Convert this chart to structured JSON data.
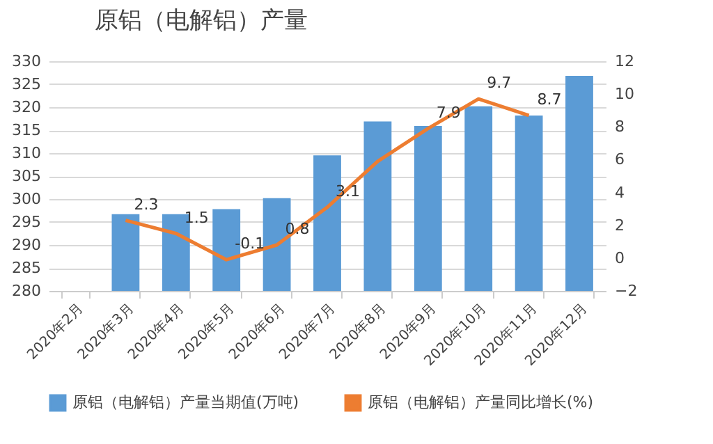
{
  "chart_data": {
    "type": "bar",
    "title": "原铝（电解铝）产量",
    "categories": [
      "2020年2月",
      "2020年3月",
      "2020年4月",
      "2020年5月",
      "2020年6月",
      "2020年7月",
      "2020年8月",
      "2020年9月",
      "2020年10月",
      "2020年11月",
      "2020年12月"
    ],
    "series": [
      {
        "name": "原铝（电解铝）产量当期值(万吨)",
        "color": "#5b9bd5",
        "values": [
          null,
          296.7,
          296.7,
          297.8,
          300.2,
          309.5,
          316.9,
          315.9,
          320.2,
          318.2,
          326.8
        ]
      },
      {
        "name": "原铝（电解铝）产量同比增长(%)",
        "type": "line",
        "axis": "y2",
        "color": "#ed7d31",
        "values": [
          null,
          2.3,
          1.5,
          -0.1,
          0.8,
          3.1,
          5.9,
          7.9,
          9.7,
          8.7,
          null
        ],
        "value_labels": [
          null,
          "2.3",
          "1.5",
          "-0.1",
          "0.8",
          "3.1",
          null,
          "7.9",
          "9.7",
          "8.7",
          null
        ]
      }
    ],
    "ylim": [
      280,
      330
    ],
    "yticks": [
      280,
      285,
      290,
      295,
      300,
      305,
      310,
      315,
      320,
      325,
      330
    ],
    "y2lim": [
      -2,
      12
    ],
    "y2ticks": [
      -2,
      0,
      2,
      4,
      6,
      8,
      10,
      12
    ],
    "grid": "y",
    "legend": "bottom"
  }
}
